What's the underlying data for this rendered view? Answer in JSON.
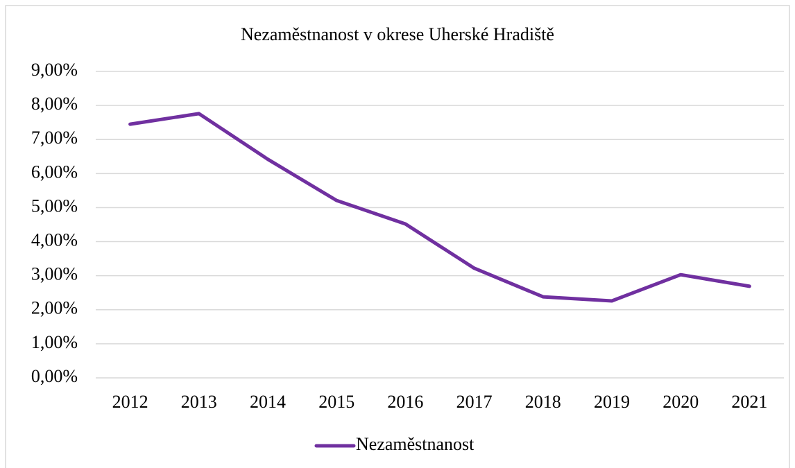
{
  "chart_data": {
    "type": "line",
    "title": "Nezaměstnanost v okrese Uherské Hradiště",
    "categories": [
      "2012",
      "2013",
      "2014",
      "2015",
      "2016",
      "2017",
      "2018",
      "2019",
      "2020",
      "2021"
    ],
    "series": [
      {
        "name": "Nezaměstnanost",
        "color": "#7030a0",
        "values": [
          7.45,
          7.76,
          6.42,
          5.21,
          4.52,
          3.22,
          2.38,
          2.26,
          3.03,
          2.69
        ]
      }
    ],
    "ylim": [
      0,
      9
    ],
    "yticks": [
      {
        "value": 0,
        "label": "0,00%"
      },
      {
        "value": 1,
        "label": "1,00%"
      },
      {
        "value": 2,
        "label": "2,00%"
      },
      {
        "value": 3,
        "label": "3,00%"
      },
      {
        "value": 4,
        "label": "4,00%"
      },
      {
        "value": 5,
        "label": "5,00%"
      },
      {
        "value": 6,
        "label": "6,00%"
      },
      {
        "value": 7,
        "label": "7,00%"
      },
      {
        "value": 8,
        "label": "8,00%"
      },
      {
        "value": 9,
        "label": "9,00%"
      }
    ],
    "grid": true,
    "legend": "bottom"
  }
}
